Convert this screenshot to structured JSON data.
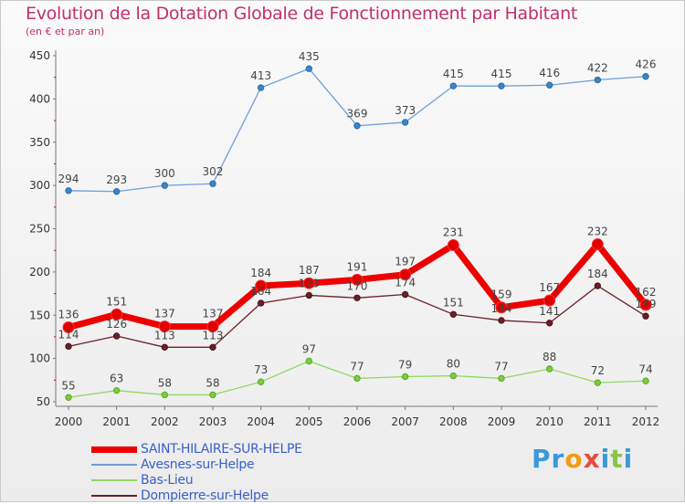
{
  "chart_data": {
    "type": "line",
    "title": "Evolution de la Dotation Globale de Fonctionnement par Habitant",
    "subtitle": "(en € et par an)",
    "xlabel": "",
    "ylabel": "",
    "ylim": [
      50,
      450
    ],
    "yticks": [
      50,
      100,
      150,
      200,
      250,
      300,
      350,
      400,
      450
    ],
    "grid": false,
    "legend_position": "bottom-left",
    "categories": [
      "2000",
      "2001",
      "2002",
      "2003",
      "2004",
      "2005",
      "2006",
      "2007",
      "2008",
      "2009",
      "2010",
      "2011",
      "2012"
    ],
    "series": [
      {
        "name": "SAINT-HILAIRE-SUR-HELPE",
        "color": "#ee0000",
        "values": [
          136,
          151,
          137,
          137,
          184,
          187,
          191,
          197,
          231,
          159,
          167,
          232,
          162
        ]
      },
      {
        "name": "Avesnes-sur-Helpe",
        "color": "#6f9fd8",
        "values": [
          294,
          293,
          300,
          302,
          413,
          435,
          369,
          373,
          415,
          415,
          416,
          422,
          426
        ]
      },
      {
        "name": "Bas-Lieu",
        "color": "#90d860",
        "values": [
          55,
          63,
          58,
          58,
          73,
          97,
          77,
          79,
          80,
          77,
          88,
          72,
          74
        ]
      },
      {
        "name": "Dompierre-sur-Helpe",
        "color": "#6b1f28",
        "values": [
          114,
          126,
          113,
          113,
          164,
          173,
          170,
          174,
          151,
          144,
          141,
          184,
          149
        ]
      }
    ]
  },
  "logo": {
    "letters": [
      "P",
      "r",
      "o",
      "x",
      "i",
      "t",
      "i"
    ],
    "colors": [
      "#3a9ad9",
      "#3a9ad9",
      "#f39c12",
      "#e74c3c",
      "#3a9ad9",
      "#8bc34a",
      "#3a9ad9"
    ]
  }
}
